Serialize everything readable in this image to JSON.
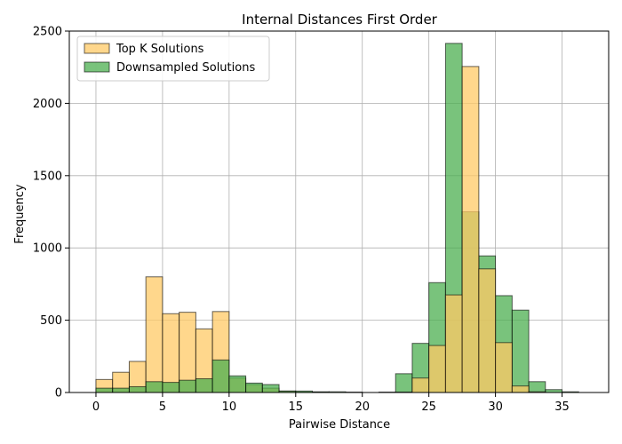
{
  "chart_data": {
    "type": "histogram",
    "title": "Internal Distances First Order",
    "xlabel": "Pairwise Distance",
    "ylabel": "Frequency",
    "xlim": [
      -2,
      38.5
    ],
    "ylim": [
      0,
      2500
    ],
    "xticks": [
      0,
      5,
      10,
      15,
      20,
      25,
      30,
      35
    ],
    "yticks": [
      0,
      500,
      1000,
      1500,
      2000,
      2500
    ],
    "grid": true,
    "legend_position": "top-left",
    "bin_width": 1.25,
    "series": [
      {
        "name": "Top K Solutions",
        "color": "#ffc966",
        "bin_starts": [
          0,
          1.25,
          2.5,
          3.75,
          5.0,
          6.25,
          7.5,
          8.75,
          10.0,
          11.25,
          12.5,
          13.75,
          15.0,
          16.25
        ],
        "values": [
          90,
          140,
          215,
          800,
          545,
          555,
          440,
          560,
          100,
          55,
          30,
          10,
          5,
          3
        ]
      },
      {
        "name": "Downsampled Solutions",
        "color": "#4caf50",
        "bin_starts": [
          0,
          1.25,
          2.5,
          3.75,
          5.0,
          6.25,
          7.5,
          8.75,
          10.0,
          11.25,
          12.5,
          13.75,
          15.0,
          16.25,
          17.5,
          18.75,
          21.25,
          22.5,
          23.75,
          25.0,
          26.25,
          27.5,
          28.75,
          30.0,
          31.25,
          32.5,
          33.75,
          35.0
        ],
        "values": [
          30,
          30,
          40,
          75,
          70,
          85,
          95,
          225,
          115,
          65,
          55,
          10,
          10,
          5,
          5,
          3,
          3,
          130,
          340,
          760,
          2415,
          1250,
          945,
          670,
          570,
          75,
          20,
          5
        ]
      },
      {
        "name": "Top K Solutions (far cluster)",
        "color": "#ffc966",
        "legend": false,
        "bin_starts": [
          22.5,
          23.75,
          25.0,
          26.25,
          27.5,
          28.75,
          30.0,
          31.25,
          32.5
        ],
        "values": [
          3,
          100,
          325,
          675,
          2255,
          855,
          345,
          45,
          5
        ]
      }
    ]
  }
}
